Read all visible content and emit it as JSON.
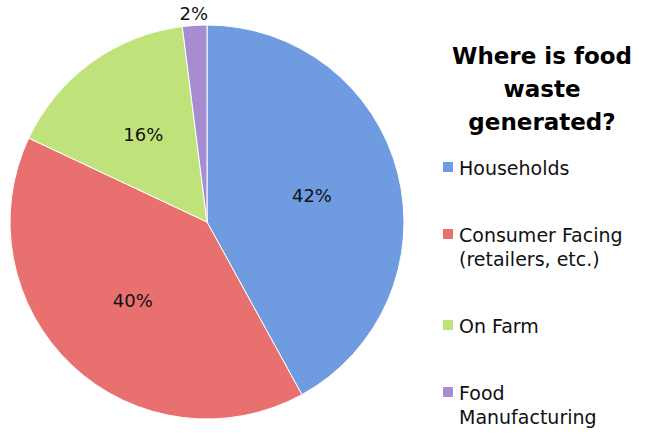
{
  "chart_data": {
    "type": "pie",
    "title": "Where is food waste generated?",
    "categories": [
      "Households",
      "Consumer Facing (retailers, etc.)",
      "On Farm",
      "Food Manufacturing"
    ],
    "values": [
      42,
      40,
      16,
      2
    ],
    "value_labels": [
      "42%",
      "40%",
      "16%",
      "2%"
    ],
    "colors": [
      "#6f9be0",
      "#e8706f",
      "#bfe27a",
      "#a88bd1"
    ],
    "data_labels": true,
    "legend": "right"
  }
}
